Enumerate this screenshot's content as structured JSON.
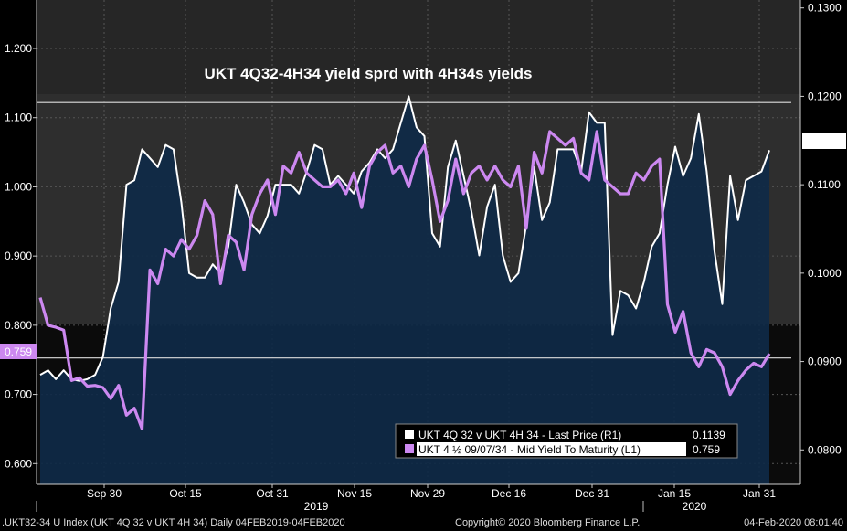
{
  "chart_data": {
    "type": "line",
    "title": "UKT 4Q32-4H34 yield sprd with 4H34s yields",
    "x_ticks": [
      "Sep 30",
      "Oct 15",
      "Oct 31",
      "Nov 15",
      "Nov 29",
      "Dec 16",
      "Dec 31",
      "Jan 15",
      "Jan 31"
    ],
    "year_labels": [
      "2019",
      "2020"
    ],
    "left_axis": {
      "ticks": [
        "0.600",
        "0.700",
        "0.800",
        "0.900",
        "1.000",
        "1.100",
        "1.200"
      ],
      "ylim": [
        0.57,
        1.27
      ]
    },
    "right_axis": {
      "ticks": [
        "0.0800",
        "0.0900",
        "0.1000",
        "0.1100",
        "0.1200",
        "0.1300"
      ],
      "ylim": [
        0.0761,
        0.1309
      ]
    },
    "band": {
      "upper": 0.1193,
      "lower": 0.0904
    },
    "series": [
      {
        "name": "UKT 4Q 32 v UKT 4H 34 - Last Price (R1)",
        "axis": "right",
        "color": "#ffffff",
        "last_value": "0.1139",
        "values": [
          0.0885,
          0.089,
          0.088,
          0.089,
          0.088,
          0.0878,
          0.088,
          0.0885,
          0.0905,
          0.096,
          0.099,
          0.11,
          0.1105,
          0.114,
          0.113,
          0.112,
          0.1145,
          0.114,
          0.108,
          0.1,
          0.0995,
          0.0995,
          0.101,
          0.1,
          0.103,
          0.11,
          0.108,
          0.1055,
          0.1045,
          0.1065,
          0.11,
          0.11,
          0.11,
          0.109,
          0.1115,
          0.1145,
          0.114,
          0.11,
          0.111,
          0.11,
          0.109,
          0.1115,
          0.1125,
          0.114,
          0.113,
          0.114,
          0.117,
          0.12,
          0.1165,
          0.1155,
          0.1045,
          0.103,
          0.112,
          0.115,
          0.111,
          0.107,
          0.102,
          0.1075,
          0.11,
          0.102,
          0.099,
          0.1,
          0.1055,
          0.112,
          0.106,
          0.108,
          0.114,
          0.114,
          0.114,
          0.1115,
          0.1182,
          0.117,
          0.117,
          0.093,
          0.098,
          0.0975,
          0.096,
          0.099,
          0.103,
          0.1045,
          0.11,
          0.1143,
          0.111,
          0.113,
          0.118,
          0.1115,
          0.1025,
          0.0965,
          0.111,
          0.106,
          0.1105,
          0.111,
          0.1115,
          0.1139
        ]
      },
      {
        "name": "UKT 4 ½  09/07/34 - Mid Yield To Maturity (L1)",
        "axis": "left",
        "color": "#cc88f0",
        "last_value": "0.759",
        "values": [
          0.84,
          0.8,
          0.797,
          0.793,
          0.72,
          0.724,
          0.712,
          0.713,
          0.71,
          0.694,
          0.713,
          0.67,
          0.68,
          0.65,
          0.88,
          0.86,
          0.91,
          0.9,
          0.924,
          0.91,
          0.93,
          0.98,
          0.96,
          0.86,
          0.93,
          0.92,
          0.88,
          0.96,
          0.99,
          1.01,
          0.96,
          1.03,
          1.02,
          1.05,
          1.02,
          1.01,
          1.0,
          1.0,
          1.01,
          0.99,
          1.02,
          0.97,
          1.03,
          1.05,
          1.06,
          1.02,
          1.03,
          1.0,
          1.04,
          1.06,
          1.01,
          0.95,
          0.98,
          1.04,
          0.99,
          1.02,
          1.03,
          1.01,
          1.03,
          1.01,
          1.0,
          1.03,
          0.94,
          1.05,
          1.02,
          1.08,
          1.07,
          1.06,
          1.07,
          1.02,
          1.01,
          1.08,
          1.01,
          1.0,
          0.99,
          0.99,
          1.02,
          1.01,
          1.03,
          1.04,
          0.83,
          0.79,
          0.82,
          0.76,
          0.74,
          0.765,
          0.76,
          0.74,
          0.7,
          0.72,
          0.735,
          0.745,
          0.74,
          0.759
        ]
      }
    ],
    "legend_placement": "bottom-right"
  },
  "footer": {
    "ticker": ".UKT32-34 U Index  (UKT 4Q 32 v UKT 4H 34)  Daily 04FEB2019-04FEB2020",
    "copyright": "Copyright© 2020 Bloomberg Finance L.P.",
    "timestamp": "04-Feb-2020 08:01:40"
  },
  "colors": {
    "background": "#000000",
    "plot_area": "#262626",
    "area_fill": "#0f2a48",
    "white_line": "#ffffff",
    "purple_line": "#cc88f0"
  }
}
